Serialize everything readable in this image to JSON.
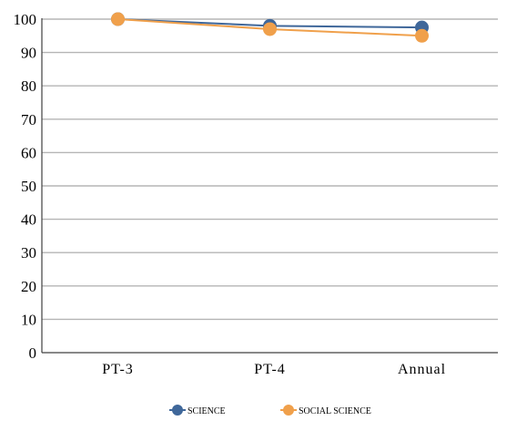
{
  "chart_data": {
    "type": "line",
    "categories": [
      "PT-3",
      "PT-4",
      "Annual"
    ],
    "series": [
      {
        "name": "SCIENCE",
        "values": [
          100,
          98,
          97.5
        ],
        "color": "#3f679a"
      },
      {
        "name": "SOCIAL SCIENCE",
        "values": [
          100,
          97,
          95
        ],
        "color": "#f0a04b"
      }
    ],
    "ylim": [
      0,
      100
    ],
    "yticks": [
      0,
      10,
      20,
      30,
      40,
      50,
      60,
      70,
      80,
      90,
      100
    ],
    "grid": true,
    "legend_position": "bottom",
    "title": "",
    "xlabel": "",
    "ylabel": ""
  }
}
